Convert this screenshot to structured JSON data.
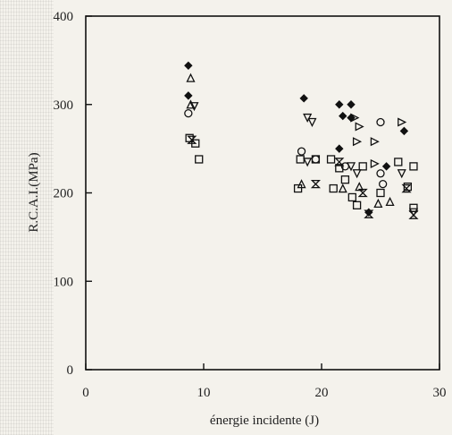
{
  "chart_data": {
    "type": "scatter",
    "xlabel": "énergie incidente (J)",
    "ylabel": "R.C.A.I.(MPa)",
    "xlim": [
      0,
      30
    ],
    "ylim": [
      0,
      400
    ],
    "xticks": [
      0,
      10,
      20,
      30
    ],
    "yticks": [
      0,
      100,
      200,
      300,
      400
    ],
    "grid": false,
    "series": [
      {
        "marker": "diamond",
        "points": [
          [
            8.7,
            344
          ],
          [
            8.7,
            310
          ],
          [
            18.5,
            307
          ],
          [
            21.5,
            300
          ],
          [
            21.8,
            287
          ],
          [
            22.5,
            300
          ],
          [
            22.5,
            285
          ],
          [
            21.5,
            250
          ],
          [
            24.0,
            178
          ],
          [
            25.5,
            230
          ],
          [
            27.0,
            270
          ]
        ]
      },
      {
        "marker": "triangle-up",
        "points": [
          [
            8.9,
            330
          ],
          [
            8.9,
            300
          ],
          [
            18.3,
            210
          ],
          [
            21.8,
            205
          ],
          [
            23.2,
            207
          ],
          [
            24.8,
            188
          ],
          [
            25.8,
            190
          ]
        ]
      },
      {
        "marker": "triangle-right",
        "points": [
          [
            22.8,
            285
          ],
          [
            23.2,
            275
          ],
          [
            23.0,
            258
          ],
          [
            24.5,
            258
          ],
          [
            24.5,
            233
          ],
          [
            26.8,
            280
          ]
        ]
      },
      {
        "marker": "triangle-down",
        "points": [
          [
            9.2,
            298
          ],
          [
            18.8,
            285
          ],
          [
            19.2,
            280
          ],
          [
            18.8,
            235
          ],
          [
            22.5,
            230
          ],
          [
            23.0,
            222
          ],
          [
            26.8,
            222
          ],
          [
            27.8,
            178
          ]
        ]
      },
      {
        "marker": "circle",
        "points": [
          [
            8.7,
            290
          ],
          [
            18.3,
            247
          ],
          [
            19.5,
            238
          ],
          [
            22.0,
            230
          ],
          [
            25.0,
            222
          ],
          [
            25.2,
            210
          ],
          [
            25.0,
            280
          ]
        ]
      },
      {
        "marker": "square",
        "points": [
          [
            8.8,
            262
          ],
          [
            9.3,
            256
          ],
          [
            9.6,
            238
          ],
          [
            18.0,
            205
          ],
          [
            18.2,
            238
          ],
          [
            19.5,
            238
          ],
          [
            20.8,
            238
          ],
          [
            21.0,
            205
          ],
          [
            21.5,
            228
          ],
          [
            22.0,
            215
          ],
          [
            22.6,
            195
          ],
          [
            23.0,
            186
          ],
          [
            23.5,
            230
          ],
          [
            25.0,
            200
          ],
          [
            26.5,
            235
          ],
          [
            27.3,
            207
          ],
          [
            27.8,
            230
          ],
          [
            27.8,
            183
          ]
        ]
      },
      {
        "marker": "hourglass",
        "points": [
          [
            9.0,
            260
          ],
          [
            19.5,
            210
          ],
          [
            21.5,
            235
          ],
          [
            23.5,
            200
          ],
          [
            24.0,
            176
          ],
          [
            27.2,
            205
          ],
          [
            27.8,
            175
          ]
        ]
      }
    ]
  }
}
